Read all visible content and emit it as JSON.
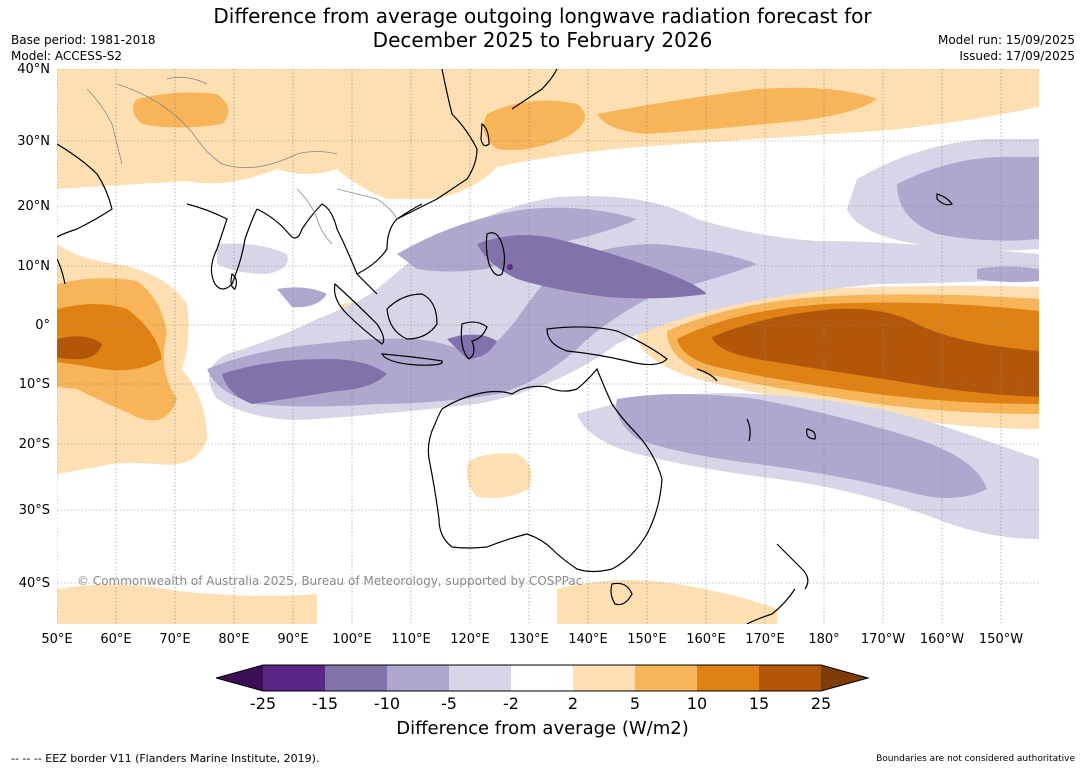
{
  "title_line1": "Difference from average outgoing longwave radiation forecast for",
  "title_line2": "December 2025 to February 2026",
  "base_period": "Base period: 1981-2018",
  "model": "Model: ACCESS-S2",
  "model_run": "Model run: 15/09/2025",
  "issued": "Issued: 17/09/2025",
  "copyright": "© Commonwealth of Australia 2025, Bureau of Meteorology, supported by COSPPac",
  "footer_left": "--  --  -- EEZ border V11 (Flanders Marine Institute, 2019).",
  "footer_right": "Boundaries are not considered authoritative",
  "lat_labels": [
    "40°N",
    "30°N",
    "20°N",
    "10°N",
    "0°",
    "10°S",
    "20°S",
    "30°S",
    "40°S"
  ],
  "lon_labels": [
    "50°E",
    "60°E",
    "70°E",
    "80°E",
    "90°E",
    "100°E",
    "110°E",
    "120°E",
    "130°E",
    "140°E",
    "150°E",
    "160°E",
    "170°E",
    "180°",
    "170°W",
    "160°W",
    "150°W"
  ],
  "colorbar": {
    "label": "Difference from average (W/m2)",
    "ticks": [
      "-25",
      "-15",
      "-10",
      "-5",
      "-2",
      "2",
      "5",
      "10",
      "15",
      "25"
    ],
    "colors": [
      "#3b0f55",
      "#5b2787",
      "#8172ac",
      "#afa7ce",
      "#d6d6e8",
      "#ffffff",
      "#fddfb1",
      "#f8b458",
      "#e08114",
      "#b25709",
      "#7f3b08"
    ]
  }
}
